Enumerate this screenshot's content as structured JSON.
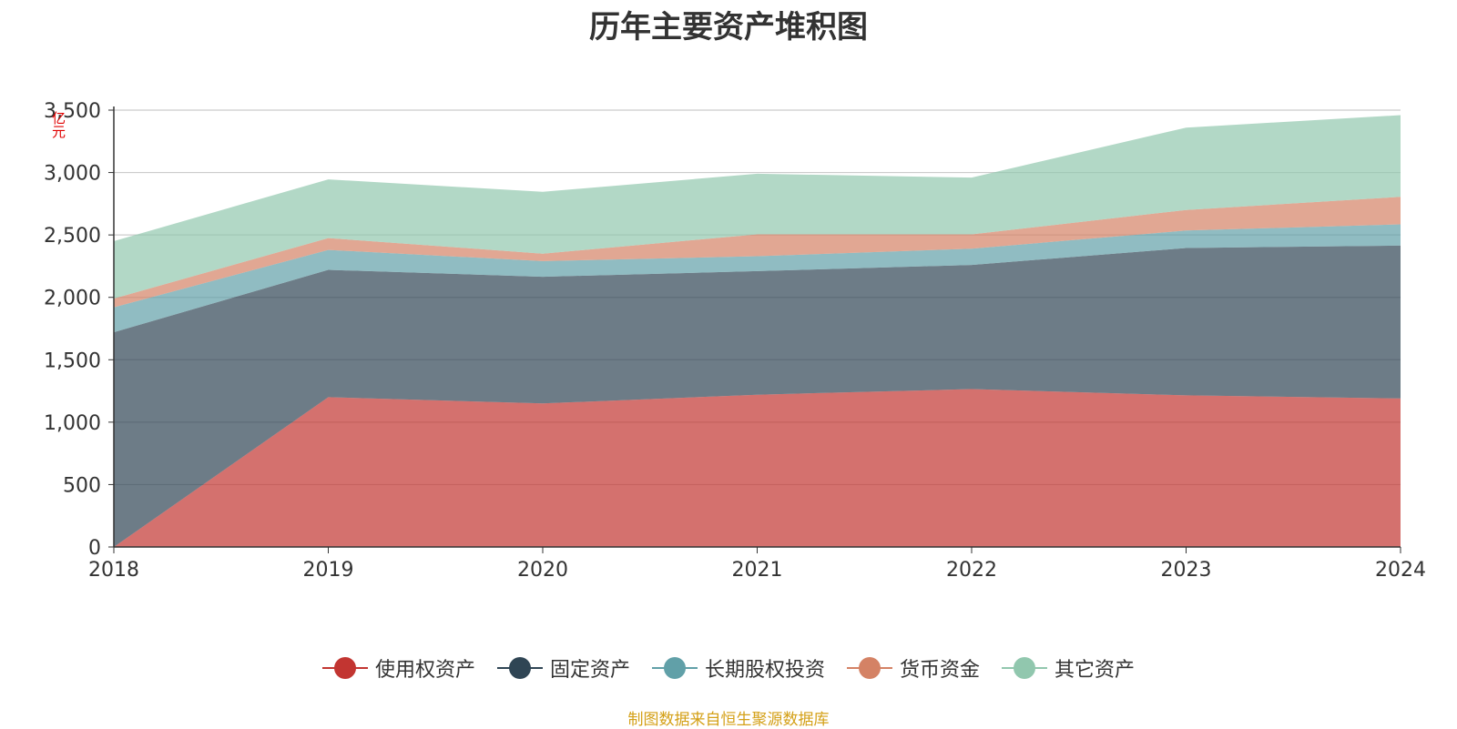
{
  "chart_data": {
    "type": "area",
    "stacked": true,
    "title": "历年主要资产堆积图",
    "unit_label": "亿元",
    "x": [
      "2018",
      "2019",
      "2020",
      "2021",
      "2022",
      "2023",
      "2024"
    ],
    "ylim": [
      0,
      3500
    ],
    "y_ticks": [
      "0",
      "500",
      "1,000",
      "1,500",
      "2,000",
      "2,500",
      "3,000",
      "3,500"
    ],
    "grid": true,
    "legend_position": "bottom",
    "series": [
      {
        "name": "使用权资产",
        "color": "#c23531",
        "values": [
          0,
          1200,
          1150,
          1220,
          1265,
          1215,
          1190
        ]
      },
      {
        "name": "固定资产",
        "color": "#2f4554",
        "values": [
          1720,
          1020,
          1015,
          990,
          995,
          1180,
          1225
        ]
      },
      {
        "name": "长期股权投资",
        "color": "#61a0a8",
        "values": [
          200,
          160,
          125,
          120,
          130,
          140,
          170
        ]
      },
      {
        "name": "货币资金",
        "color": "#d48265",
        "values": [
          70,
          95,
          60,
          175,
          115,
          165,
          220
        ]
      },
      {
        "name": "其它资产",
        "color": "#91c7ae",
        "values": [
          460,
          470,
          495,
          485,
          455,
          660,
          655
        ]
      }
    ],
    "source_note": "制图数据来自恒生聚源数据库"
  }
}
